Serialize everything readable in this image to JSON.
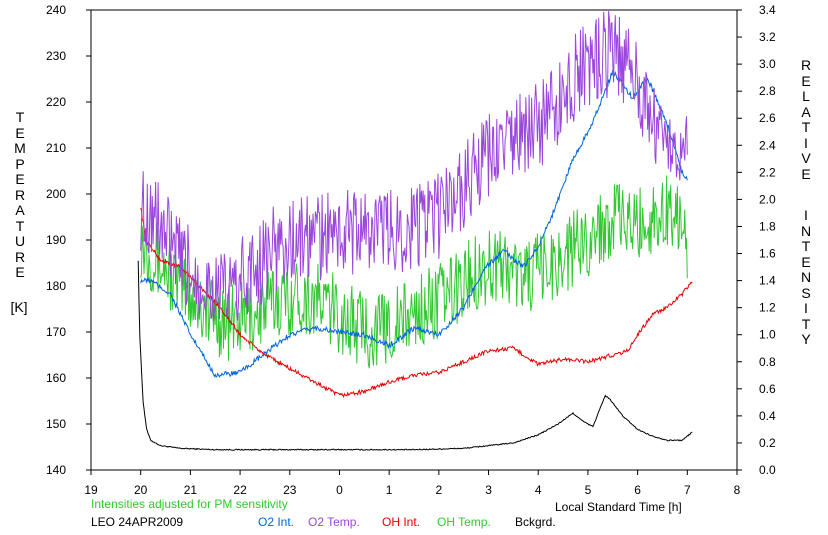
{
  "chart_data": {
    "type": "line",
    "left_axis": {
      "label_letters": [
        "T",
        "E",
        "M",
        "P",
        "E",
        "R",
        "A",
        "T",
        "U",
        "R",
        "E"
      ],
      "unit": "[K]",
      "range": [
        140,
        240
      ],
      "ticks": [
        140,
        150,
        160,
        170,
        180,
        190,
        200,
        210,
        220,
        230,
        240
      ]
    },
    "right_axis": {
      "label_line1": [
        "R",
        "E",
        "L",
        "A",
        "T",
        "I",
        "V",
        "E"
      ],
      "label_line2": [
        "I",
        "N",
        "T",
        "E",
        "N",
        "S",
        "I",
        "T",
        "Y"
      ],
      "range": [
        0.0,
        3.4
      ],
      "ticks": [
        "0.0",
        "0.2",
        "0.4",
        "0.6",
        "0.8",
        "1.0",
        "1.2",
        "1.4",
        "1.6",
        "1.8",
        "2.0",
        "2.2",
        "2.4",
        "2.6",
        "2.8",
        "3.0",
        "3.2",
        "3.4"
      ]
    },
    "x_axis": {
      "label": "Local Standard Time [h]",
      "range": [
        19,
        32
      ],
      "tick_labels": [
        "19",
        "20",
        "21",
        "22",
        "23",
        "0",
        "1",
        "2",
        "3",
        "4",
        "5",
        "6",
        "7",
        "8"
      ]
    },
    "note": "Intensities adjusted for PM sensitivity",
    "station": "LEO 24APR2009",
    "colors": {
      "o2int": "#0064dc",
      "o2temp": "#9b46dc",
      "ohint": "#e60000",
      "ohtemp": "#32c832",
      "bckgrd": "#000000"
    },
    "series": [
      {
        "key": "o2temp",
        "name": "O2 Temp.",
        "axis": "left",
        "noise": 8,
        "x": [
          20.0,
          20.3,
          20.8,
          21.3,
          21.7,
          22.2,
          22.7,
          23.2,
          23.7,
          24.2,
          24.7,
          25.2,
          25.7,
          26.0,
          26.3,
          26.7,
          27.2,
          27.7,
          28.2,
          28.7,
          29.0,
          29.3,
          29.5,
          29.8,
          30.2,
          30.7,
          31.0
        ],
        "y": [
          197,
          195,
          185,
          181,
          178,
          183,
          188,
          190,
          191,
          192,
          192,
          192,
          194,
          195,
          200,
          204,
          210,
          213,
          216,
          225,
          228,
          230,
          231,
          228,
          218,
          212,
          210
        ]
      },
      {
        "key": "o2int",
        "name": "O2 Int.",
        "axis": "right",
        "noise": 0.02,
        "x": [
          20.0,
          20.2,
          20.6,
          21.0,
          21.5,
          22.0,
          22.5,
          23.0,
          23.5,
          24.0,
          24.5,
          25.0,
          25.5,
          26.0,
          26.5,
          26.9,
          27.3,
          27.7,
          28.0,
          28.3,
          28.7,
          29.0,
          29.3,
          29.5,
          29.7,
          29.9,
          30.2,
          30.6,
          30.9,
          31.0
        ],
        "y": [
          1.4,
          1.4,
          1.3,
          1.0,
          0.7,
          0.72,
          0.86,
          1.0,
          1.05,
          1.02,
          1.0,
          0.92,
          1.05,
          1.0,
          1.2,
          1.48,
          1.62,
          1.5,
          1.65,
          1.9,
          2.3,
          2.5,
          2.75,
          2.95,
          2.85,
          2.75,
          2.9,
          2.55,
          2.2,
          2.15
        ]
      },
      {
        "key": "ohint",
        "name": "OH Int.",
        "axis": "right",
        "noise": 0.015,
        "x": [
          20.0,
          20.1,
          20.4,
          20.8,
          21.2,
          21.6,
          22.0,
          22.5,
          23.0,
          23.5,
          24.0,
          24.5,
          25.0,
          25.5,
          26.0,
          26.5,
          27.0,
          27.5,
          28.0,
          28.5,
          29.0,
          29.5,
          29.8,
          30.0,
          30.3,
          30.6,
          30.9,
          31.1
        ],
        "y": [
          1.95,
          1.7,
          1.55,
          1.5,
          1.35,
          1.2,
          1.0,
          0.85,
          0.75,
          0.65,
          0.55,
          0.58,
          0.65,
          0.7,
          0.72,
          0.8,
          0.88,
          0.9,
          0.78,
          0.82,
          0.8,
          0.85,
          0.88,
          1.0,
          1.15,
          1.2,
          1.3,
          1.4
        ]
      },
      {
        "key": "ohtemp",
        "name": "OH Temp.",
        "axis": "left",
        "noise": 7,
        "x": [
          20.0,
          20.3,
          20.8,
          21.3,
          21.7,
          22.2,
          22.7,
          23.2,
          23.7,
          24.2,
          24.7,
          25.2,
          25.7,
          26.2,
          26.7,
          27.2,
          27.7,
          28.2,
          28.7,
          29.2,
          29.5,
          29.8,
          30.2,
          30.7,
          31.0
        ],
        "y": [
          190,
          186,
          180,
          175,
          172,
          173,
          177,
          178,
          176,
          172,
          170,
          172,
          175,
          178,
          183,
          185,
          182,
          184,
          188,
          192,
          195,
          193,
          194,
          197,
          190
        ]
      },
      {
        "key": "bckgrd",
        "name": "Bckgrd.",
        "axis": "right",
        "noise": 0.004,
        "x": [
          19.95,
          19.98,
          20.05,
          20.12,
          20.2,
          20.4,
          20.8,
          21.5,
          22.5,
          23.5,
          24.5,
          25.5,
          26.5,
          27.0,
          27.5,
          28.0,
          28.4,
          28.7,
          28.9,
          29.1,
          29.25,
          29.35,
          29.45,
          29.7,
          30.0,
          30.3,
          30.6,
          30.9,
          31.1
        ],
        "y": [
          1.55,
          1.0,
          0.5,
          0.3,
          0.22,
          0.18,
          0.16,
          0.15,
          0.15,
          0.15,
          0.15,
          0.15,
          0.16,
          0.18,
          0.2,
          0.26,
          0.34,
          0.42,
          0.36,
          0.32,
          0.46,
          0.55,
          0.52,
          0.4,
          0.3,
          0.25,
          0.22,
          0.22,
          0.28
        ]
      }
    ]
  }
}
